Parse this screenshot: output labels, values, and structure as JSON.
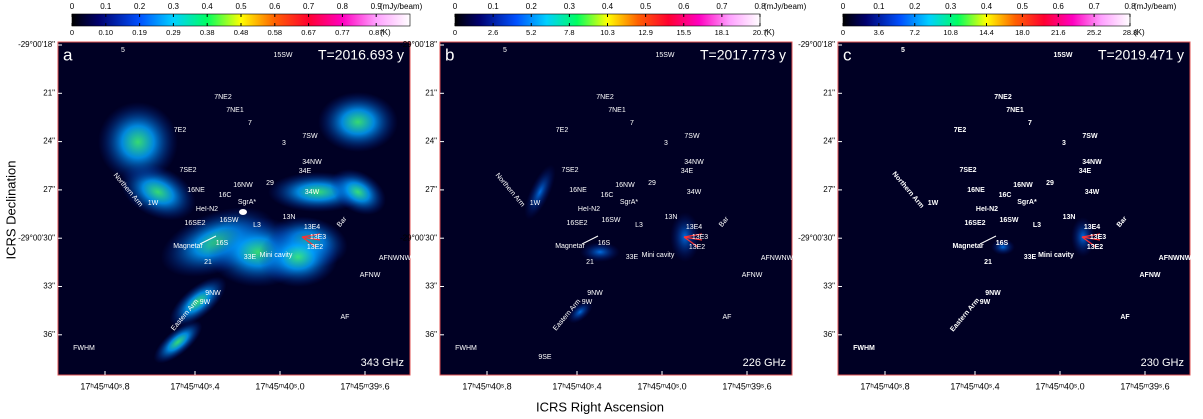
{
  "y_axis_label": "ICRS Declination",
  "x_axis_label": "ICRS Right Ascension",
  "dec_ticks": [
    "-29°00'18\"",
    "21\"",
    "24\"",
    "27\"",
    "-29°00'30\"",
    "33\"",
    "36\""
  ],
  "ra_ticks": [
    "17ʰ45ᵐ40ˢ.8",
    "17ʰ45ᵐ40ˢ.4",
    "17ʰ45ᵐ40ˢ.0",
    "17ʰ45ᵐ39ˢ.6"
  ],
  "sources": [
    "5",
    "15SW",
    "7NE2",
    "7NE1",
    "7",
    "7E2",
    "3",
    "7SW",
    "34NW",
    "34E",
    "7SE2",
    "29",
    "34W",
    "16NE",
    "16NW",
    "16C",
    "SgrA*",
    "1W",
    "Northern Arm",
    "HeI-N2",
    "16SE2",
    "16SW",
    "L3",
    "13N",
    "13E4",
    "13E3",
    "13E2",
    "Bar",
    "Magnetar",
    "16S",
    "21",
    "33E",
    "Mini cavity",
    "AFNWNW",
    "AFNW",
    "9NW",
    "9W",
    "Eastern Arm",
    "AF",
    "FWHM"
  ],
  "panels": [
    {
      "letter": "a",
      "epoch": "T=2016.693 y",
      "frequency": "343 GHz",
      "colorbar": {
        "top_ticks": [
          "0",
          "0.1",
          "0.2",
          "0.3",
          "0.4",
          "0.5",
          "0.6",
          "0.7",
          "0.8",
          "0.9"
        ],
        "top_unit": "(mJy/beam)",
        "bottom_ticks": [
          "0",
          "0.10",
          "0.19",
          "0.29",
          "0.38",
          "0.48",
          "0.58",
          "0.67",
          "0.77",
          "0.87"
        ],
        "bottom_unit": "(K)"
      }
    },
    {
      "letter": "b",
      "epoch": "T=2017.773 y",
      "frequency": "226 GHz",
      "extra_sources": [
        "9SE"
      ],
      "colorbar": {
        "top_ticks": [
          "0",
          "0.1",
          "0.2",
          "0.3",
          "0.4",
          "0.5",
          "0.6",
          "0.7",
          "0.8"
        ],
        "top_unit": "(mJy/beam)",
        "bottom_ticks": [
          "0",
          "2.6",
          "5.2",
          "7.8",
          "10.3",
          "12.9",
          "15.5",
          "18.1",
          "20.7"
        ],
        "bottom_unit": "(K)"
      }
    },
    {
      "letter": "c",
      "epoch": "T=2019.471 y",
      "frequency": "230 GHz",
      "colorbar": {
        "top_ticks": [
          "0",
          "0.1",
          "0.2",
          "0.3",
          "0.4",
          "0.5",
          "0.6",
          "0.7",
          "0.8"
        ],
        "top_unit": "(mJy/beam)",
        "bottom_ticks": [
          "0",
          "3.6",
          "7.2",
          "10.8",
          "14.4",
          "18.0",
          "21.6",
          "25.2",
          "28.8"
        ],
        "bottom_unit": "(K)"
      }
    }
  ]
}
